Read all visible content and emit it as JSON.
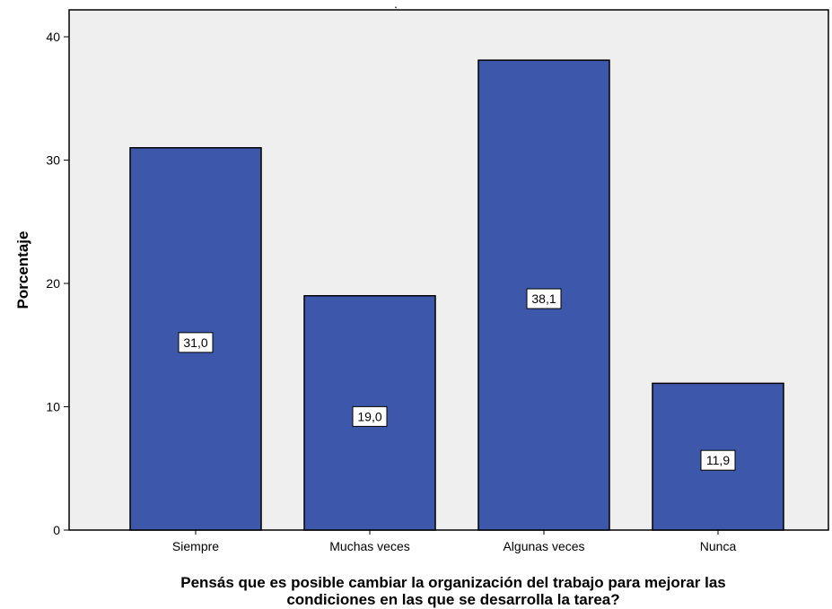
{
  "chart_data": {
    "type": "bar",
    "title": ".",
    "categories": [
      "Siempre",
      "Muchas veces",
      "Algunas veces",
      "Nunca"
    ],
    "values": [
      31.0,
      19.0,
      38.1,
      11.9
    ],
    "data_labels": [
      "31,0",
      "19,0",
      "38,1",
      "11,9"
    ],
    "ylabel": "Porcentaje",
    "xlabel_lines": [
      "Pensás que es posible cambiar la organización del trabajo para mejorar las",
      "condiciones en las que se desarrolla la tarea?"
    ],
    "ylim": [
      0,
      40
    ],
    "yticks": [
      "0",
      "10",
      "20",
      "30",
      "40"
    ],
    "grid": false,
    "colors": {
      "bar": "#3d57ab",
      "bar_edge": "#000000",
      "plot_bg": "#efefef"
    }
  }
}
